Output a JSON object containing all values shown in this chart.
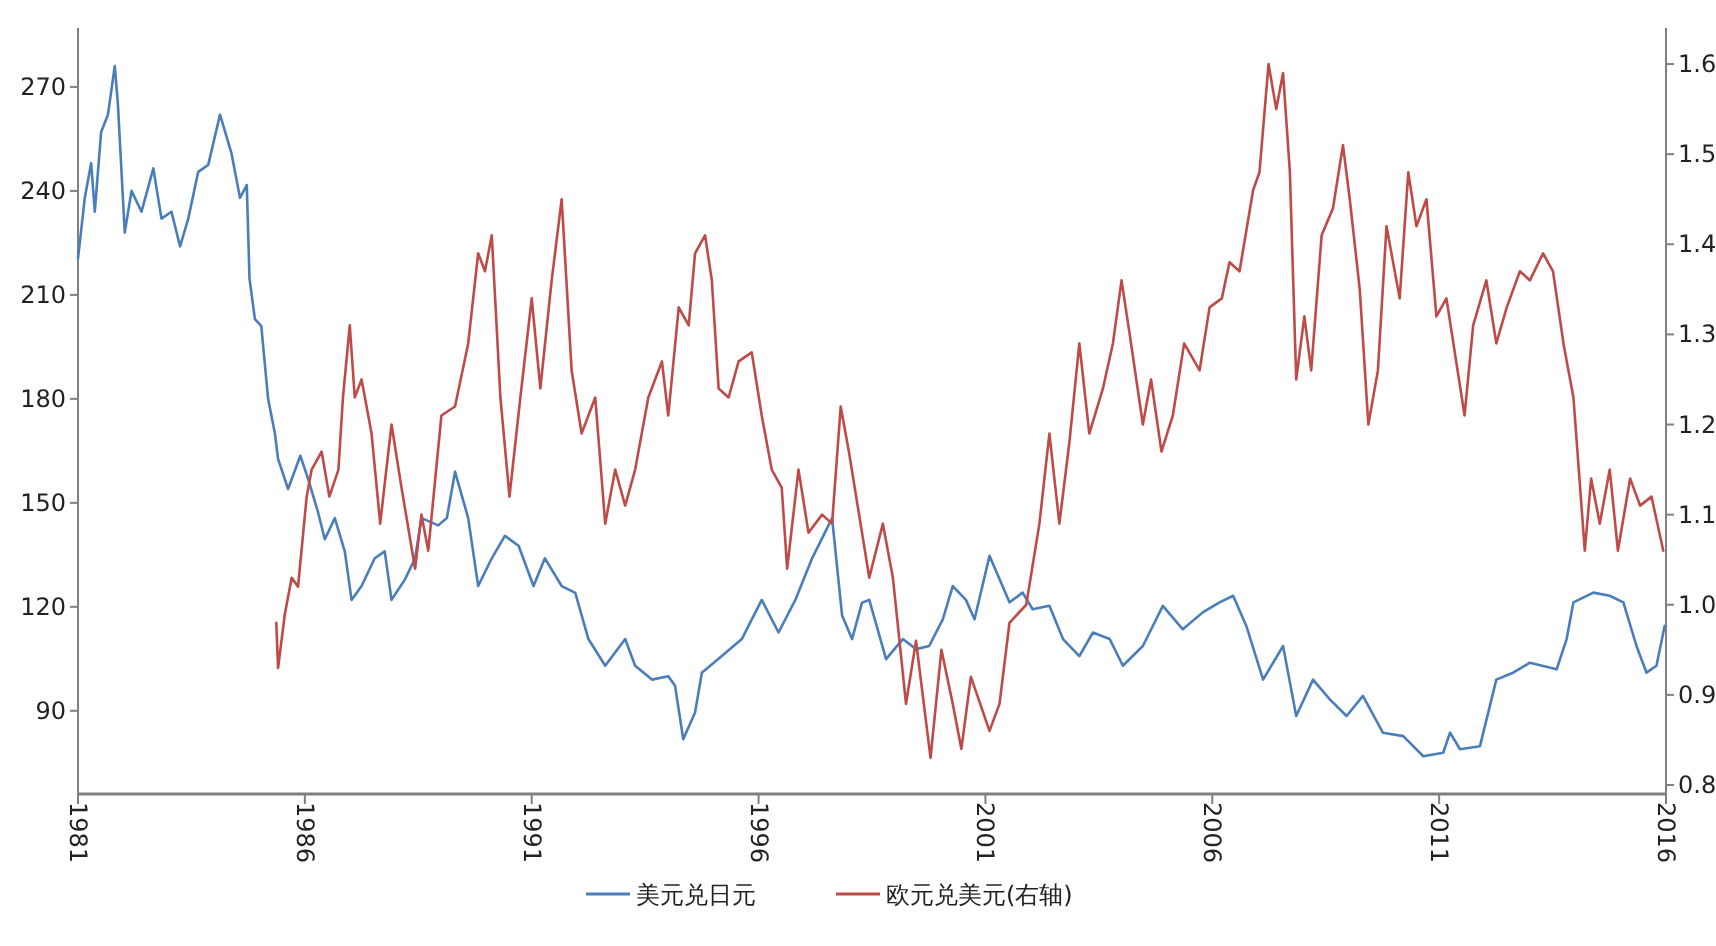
{
  "chart_data": {
    "type": "line",
    "xlim": [
      1981,
      2016
    ],
    "xticks": [
      1981,
      1986,
      1991,
      1996,
      2001,
      2006,
      2011,
      2016
    ],
    "ylim": [
      66,
      287
    ],
    "yticks": [
      90,
      120,
      150,
      180,
      210,
      240,
      270
    ],
    "y2lim": [
      0.79,
      1.64
    ],
    "y2ticks": [
      {
        "value": 0.8,
        "label": "0.8"
      },
      {
        "value": 0.9,
        "label": "0.9"
      },
      {
        "value": 1,
        "label": "1.0"
      },
      {
        "value": 1.1,
        "label": "1.1"
      },
      {
        "value": 1.2,
        "label": "1.2"
      },
      {
        "value": 1.3,
        "label": "1.3"
      },
      {
        "value": 1.4,
        "label": "1.4"
      },
      {
        "value": 1.5,
        "label": "1.5"
      },
      {
        "value": 1.6,
        "label": "1.6"
      }
    ],
    "legend": "bottom",
    "grid": false,
    "marker": "none",
    "line_style": "solid",
    "series": [
      {
        "name": "美元兑日元",
        "color": "#4a7ebb",
        "x": [
          1981.0,
          1981.15,
          1981.29,
          1981.37,
          1981.51,
          1981.66,
          1981.81,
          1981.88,
          1982.03,
          1982.18,
          1982.4,
          1982.66,
          1982.84,
          1983.06,
          1983.25,
          1983.43,
          1983.65,
          1983.87,
          1984.13,
          1984.38,
          1984.57,
          1984.72,
          1984.78,
          1984.9,
          1985.04,
          1985.19,
          1985.34,
          1985.41,
          1985.63,
          1985.9,
          1986.07,
          1986.29,
          1986.44,
          1986.66,
          1986.88,
          1987.03,
          1987.25,
          1987.54,
          1987.76,
          1987.91,
          1988.21,
          1988.43,
          1988.57,
          1988.94,
          1989.13,
          1989.31,
          1989.6,
          1989.82,
          1990.12,
          1990.41,
          1990.71,
          1991.04,
          1991.29,
          1991.66,
          1991.96,
          1992.25,
          1992.62,
          1993.06,
          1993.28,
          1993.65,
          1994.01,
          1994.16,
          1994.34,
          1994.6,
          1994.75,
          1995.19,
          1995.63,
          1996.07,
          1996.44,
          1996.81,
          1997.18,
          1997.62,
          1997.84,
          1998.06,
          1998.28,
          1998.44,
          1998.81,
          1999.18,
          1999.47,
          1999.76,
          2000.06,
          2000.28,
          2000.57,
          2000.76,
          2001.09,
          2001.31,
          2001.53,
          2001.82,
          2002.04,
          2002.41,
          2002.71,
          2003.07,
          2003.37,
          2003.74,
          2004.03,
          2004.47,
          2004.91,
          2005.35,
          2005.79,
          2006.16,
          2006.46,
          2006.75,
          2007.12,
          2007.56,
          2007.85,
          2008.22,
          2008.59,
          2008.96,
          2009.32,
          2009.76,
          2010.21,
          2010.65,
          2011.09,
          2011.24,
          2011.46,
          2011.9,
          2012.26,
          2012.63,
          2013.0,
          2013.59,
          2013.81,
          2013.96,
          2014.4,
          2014.76,
          2015.06,
          2015.35,
          2015.57,
          2015.79,
          2015.97
        ],
        "values": [
          220.5,
          238,
          248,
          234,
          257,
          262,
          276,
          265,
          228,
          240,
          234,
          246.5,
          232,
          234,
          224,
          232,
          245.5,
          247.5,
          262,
          251,
          238,
          241.7,
          214.7,
          203,
          201,
          180,
          170,
          162.7,
          154,
          163.6,
          157,
          147.3,
          139.5,
          145.6,
          136,
          122,
          126,
          134,
          136,
          122,
          128,
          134,
          145.6,
          143.5,
          145.6,
          159,
          145.6,
          126,
          134,
          140.5,
          137.6,
          126,
          134,
          126,
          124,
          110.7,
          103,
          110.7,
          103,
          99,
          100,
          97.2,
          81.8,
          89.5,
          101,
          105.8,
          110.7,
          122,
          112.6,
          122,
          134,
          145.6,
          117.6,
          110.7,
          121.2,
          122,
          104.9,
          110.7,
          107.8,
          108.7,
          116.4,
          126,
          122,
          116.4,
          134.7,
          128,
          121.3,
          124.1,
          119.3,
          120.3,
          110.7,
          105.8,
          112.6,
          110.7,
          103,
          108.7,
          120.3,
          113.5,
          118.4,
          121.3,
          123.2,
          114.5,
          99,
          108.7,
          88.5,
          99,
          93.3,
          88.5,
          94.3,
          83.7,
          82.7,
          76.9,
          77.9,
          83.7,
          78.9,
          79.8,
          99,
          101,
          103.9,
          102,
          110.7,
          121.3,
          124.1,
          123.2,
          121.3,
          108.7,
          101,
          103,
          114.5
        ]
      },
      {
        "name": "欧元兑美元(右轴)",
        "color": "#be4b48",
        "axis": "y2",
        "x": [
          1985.37,
          1985.41,
          1985.56,
          1985.71,
          1985.85,
          1986.04,
          1986.15,
          1986.37,
          1986.54,
          1986.74,
          1986.84,
          1986.99,
          1987.1,
          1987.25,
          1987.47,
          1987.66,
          1987.91,
          1988.13,
          1988.43,
          1988.57,
          1988.72,
          1989.01,
          1989.31,
          1989.6,
          1989.82,
          1989.97,
          1990.12,
          1990.31,
          1990.51,
          1990.75,
          1991.0,
          1991.19,
          1991.44,
          1991.66,
          1991.88,
          1992.1,
          1992.4,
          1992.62,
          1992.84,
          1993.06,
          1993.28,
          1993.57,
          1993.87,
          1994.01,
          1994.24,
          1994.46,
          1994.6,
          1994.82,
          1994.97,
          1995.12,
          1995.34,
          1995.56,
          1995.85,
          1996.07,
          1996.29,
          1996.51,
          1996.63,
          1996.88,
          1997.1,
          1997.4,
          1997.62,
          1997.81,
          1997.99,
          1998.28,
          1998.44,
          1998.74,
          1998.96,
          1999.25,
          1999.47,
          1999.79,
          2000.03,
          2000.28,
          2000.47,
          2000.68,
          2001.09,
          2001.31,
          2001.53,
          2001.9,
          2002.19,
          2002.41,
          2002.63,
          2002.85,
          2003.07,
          2003.29,
          2003.59,
          2003.81,
          2004.0,
          2004.18,
          2004.47,
          2004.65,
          2004.88,
          2005.13,
          2005.38,
          2005.72,
          2005.94,
          2006.21,
          2006.38,
          2006.6,
          2006.9,
          2007.04,
          2007.24,
          2007.41,
          2007.56,
          2007.71,
          2007.85,
          2008.03,
          2008.18,
          2008.41,
          2008.66,
          2008.88,
          2009.03,
          2009.25,
          2009.44,
          2009.65,
          2009.84,
          2010.13,
          2010.32,
          2010.5,
          2010.72,
          2010.94,
          2011.16,
          2011.56,
          2011.75,
          2012.04,
          2012.26,
          2012.49,
          2012.78,
          2013.0,
          2013.29,
          2013.51,
          2013.74,
          2013.96,
          2014.21,
          2014.35,
          2014.54,
          2014.76,
          2014.94,
          2015.21,
          2015.43,
          2015.68,
          2015.94
        ],
        "values": [
          0.98,
          0.93,
          0.99,
          1.03,
          1.02,
          1.12,
          1.15,
          1.17,
          1.12,
          1.15,
          1.23,
          1.31,
          1.23,
          1.25,
          1.19,
          1.09,
          1.2,
          1.13,
          1.04,
          1.1,
          1.06,
          1.21,
          1.22,
          1.29,
          1.39,
          1.37,
          1.41,
          1.23,
          1.12,
          1.23,
          1.34,
          1.24,
          1.36,
          1.45,
          1.26,
          1.19,
          1.23,
          1.09,
          1.15,
          1.11,
          1.15,
          1.23,
          1.27,
          1.21,
          1.33,
          1.31,
          1.39,
          1.41,
          1.36,
          1.24,
          1.23,
          1.27,
          1.28,
          1.21,
          1.15,
          1.13,
          1.04,
          1.15,
          1.08,
          1.1,
          1.09,
          1.22,
          1.17,
          1.08,
          1.03,
          1.09,
          1.03,
          0.89,
          0.96,
          0.83,
          0.95,
          0.89,
          0.84,
          0.92,
          0.86,
          0.89,
          0.98,
          1.0,
          1.09,
          1.19,
          1.09,
          1.18,
          1.29,
          1.19,
          1.24,
          1.29,
          1.36,
          1.3,
          1.2,
          1.25,
          1.17,
          1.21,
          1.29,
          1.26,
          1.33,
          1.34,
          1.38,
          1.37,
          1.46,
          1.48,
          1.6,
          1.55,
          1.59,
          1.48,
          1.25,
          1.32,
          1.26,
          1.41,
          1.44,
          1.51,
          1.45,
          1.35,
          1.2,
          1.26,
          1.42,
          1.34,
          1.48,
          1.42,
          1.45,
          1.32,
          1.34,
          1.21,
          1.31,
          1.36,
          1.29,
          1.33,
          1.37,
          1.36,
          1.39,
          1.37,
          1.29,
          1.23,
          1.06,
          1.14,
          1.09,
          1.15,
          1.06,
          1.14,
          1.11,
          1.12,
          1.06
        ]
      }
    ]
  }
}
